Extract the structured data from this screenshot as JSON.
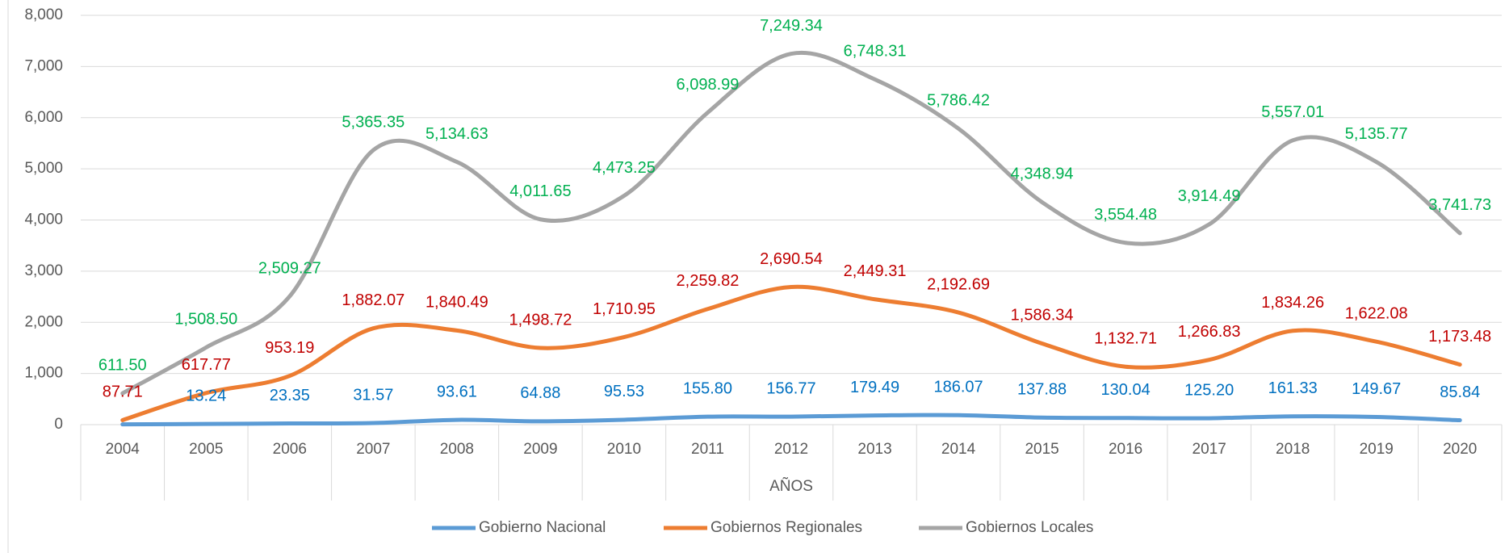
{
  "chart_data": {
    "type": "line",
    "x_axis_label": "AÑOS",
    "categories": [
      "2004",
      "2005",
      "2006",
      "2007",
      "2008",
      "2009",
      "2010",
      "2011",
      "2012",
      "2013",
      "2014",
      "2015",
      "2016",
      "2017",
      "2018",
      "2019",
      "2020"
    ],
    "series": [
      {
        "name": "Gobierno Nacional",
        "color": "#5b9bd5",
        "label_color": "#0070c0",
        "values": [
          5,
          13.24,
          23.35,
          31.57,
          93.61,
          64.88,
          95.53,
          155.8,
          156.77,
          179.49,
          186.07,
          137.88,
          130.04,
          125.2,
          161.33,
          149.67,
          85.84
        ],
        "value_labels": [
          null,
          "13.24",
          "23.35",
          "31.57",
          "93.61",
          "64.88",
          "95.53",
          "155.80",
          "156.77",
          "179.49",
          "186.07",
          "137.88",
          "130.04",
          "125.20",
          "161.33",
          "149.67",
          "85.84"
        ]
      },
      {
        "name": "Gobiernos Regionales",
        "color": "#ed7d31",
        "label_color": "#c00000",
        "values": [
          87.71,
          617.77,
          953.19,
          1882.07,
          1840.49,
          1498.72,
          1710.95,
          2259.82,
          2690.54,
          2449.31,
          2192.69,
          1586.34,
          1132.71,
          1266.83,
          1834.26,
          1622.08,
          1173.48
        ],
        "value_labels": [
          "87.71",
          "617.77",
          "953.19",
          "1,882.07",
          "1,840.49",
          "1,498.72",
          "1,710.95",
          "2,259.82",
          "2,690.54",
          "2,449.31",
          "2,192.69",
          "1,586.34",
          "1,132.71",
          "1,266.83",
          "1,834.26",
          "1,622.08",
          "1,173.48"
        ]
      },
      {
        "name": "Gobiernos Locales",
        "color": "#a5a5a5",
        "label_color": "#00b050",
        "values": [
          611.5,
          1508.5,
          2509.27,
          5365.35,
          5134.63,
          4011.65,
          4473.25,
          6098.99,
          7249.34,
          6748.31,
          5786.42,
          4348.94,
          3554.48,
          3914.49,
          5557.01,
          5135.77,
          3741.73
        ],
        "value_labels": [
          "611.50",
          "1,508.50",
          "2,509.27",
          "5,365.35",
          "5,134.63",
          "4,011.65",
          "4,473.25",
          "6,098.99",
          "7,249.34",
          "6,748.31",
          "5,786.42",
          "4,348.94",
          "3,554.48",
          "3,914.49",
          "5,557.01",
          "5,135.77",
          "3,741.73"
        ]
      }
    ],
    "ylim": [
      0,
      8000
    ],
    "yticks": [
      0,
      {
        "value": 1000,
        "label": "1,000"
      },
      {
        "value": 2000,
        "label": "2,000"
      },
      {
        "value": 3000,
        "label": "3,000"
      },
      {
        "value": 4000,
        "label": "4,000"
      },
      {
        "value": 5000,
        "label": "5,000"
      },
      {
        "value": 6000,
        "label": "6,000"
      },
      {
        "value": 7000,
        "label": "7,000"
      },
      {
        "value": 8000,
        "label": "8,000"
      }
    ],
    "grid": true,
    "legend": "bottom",
    "smooth": true
  }
}
